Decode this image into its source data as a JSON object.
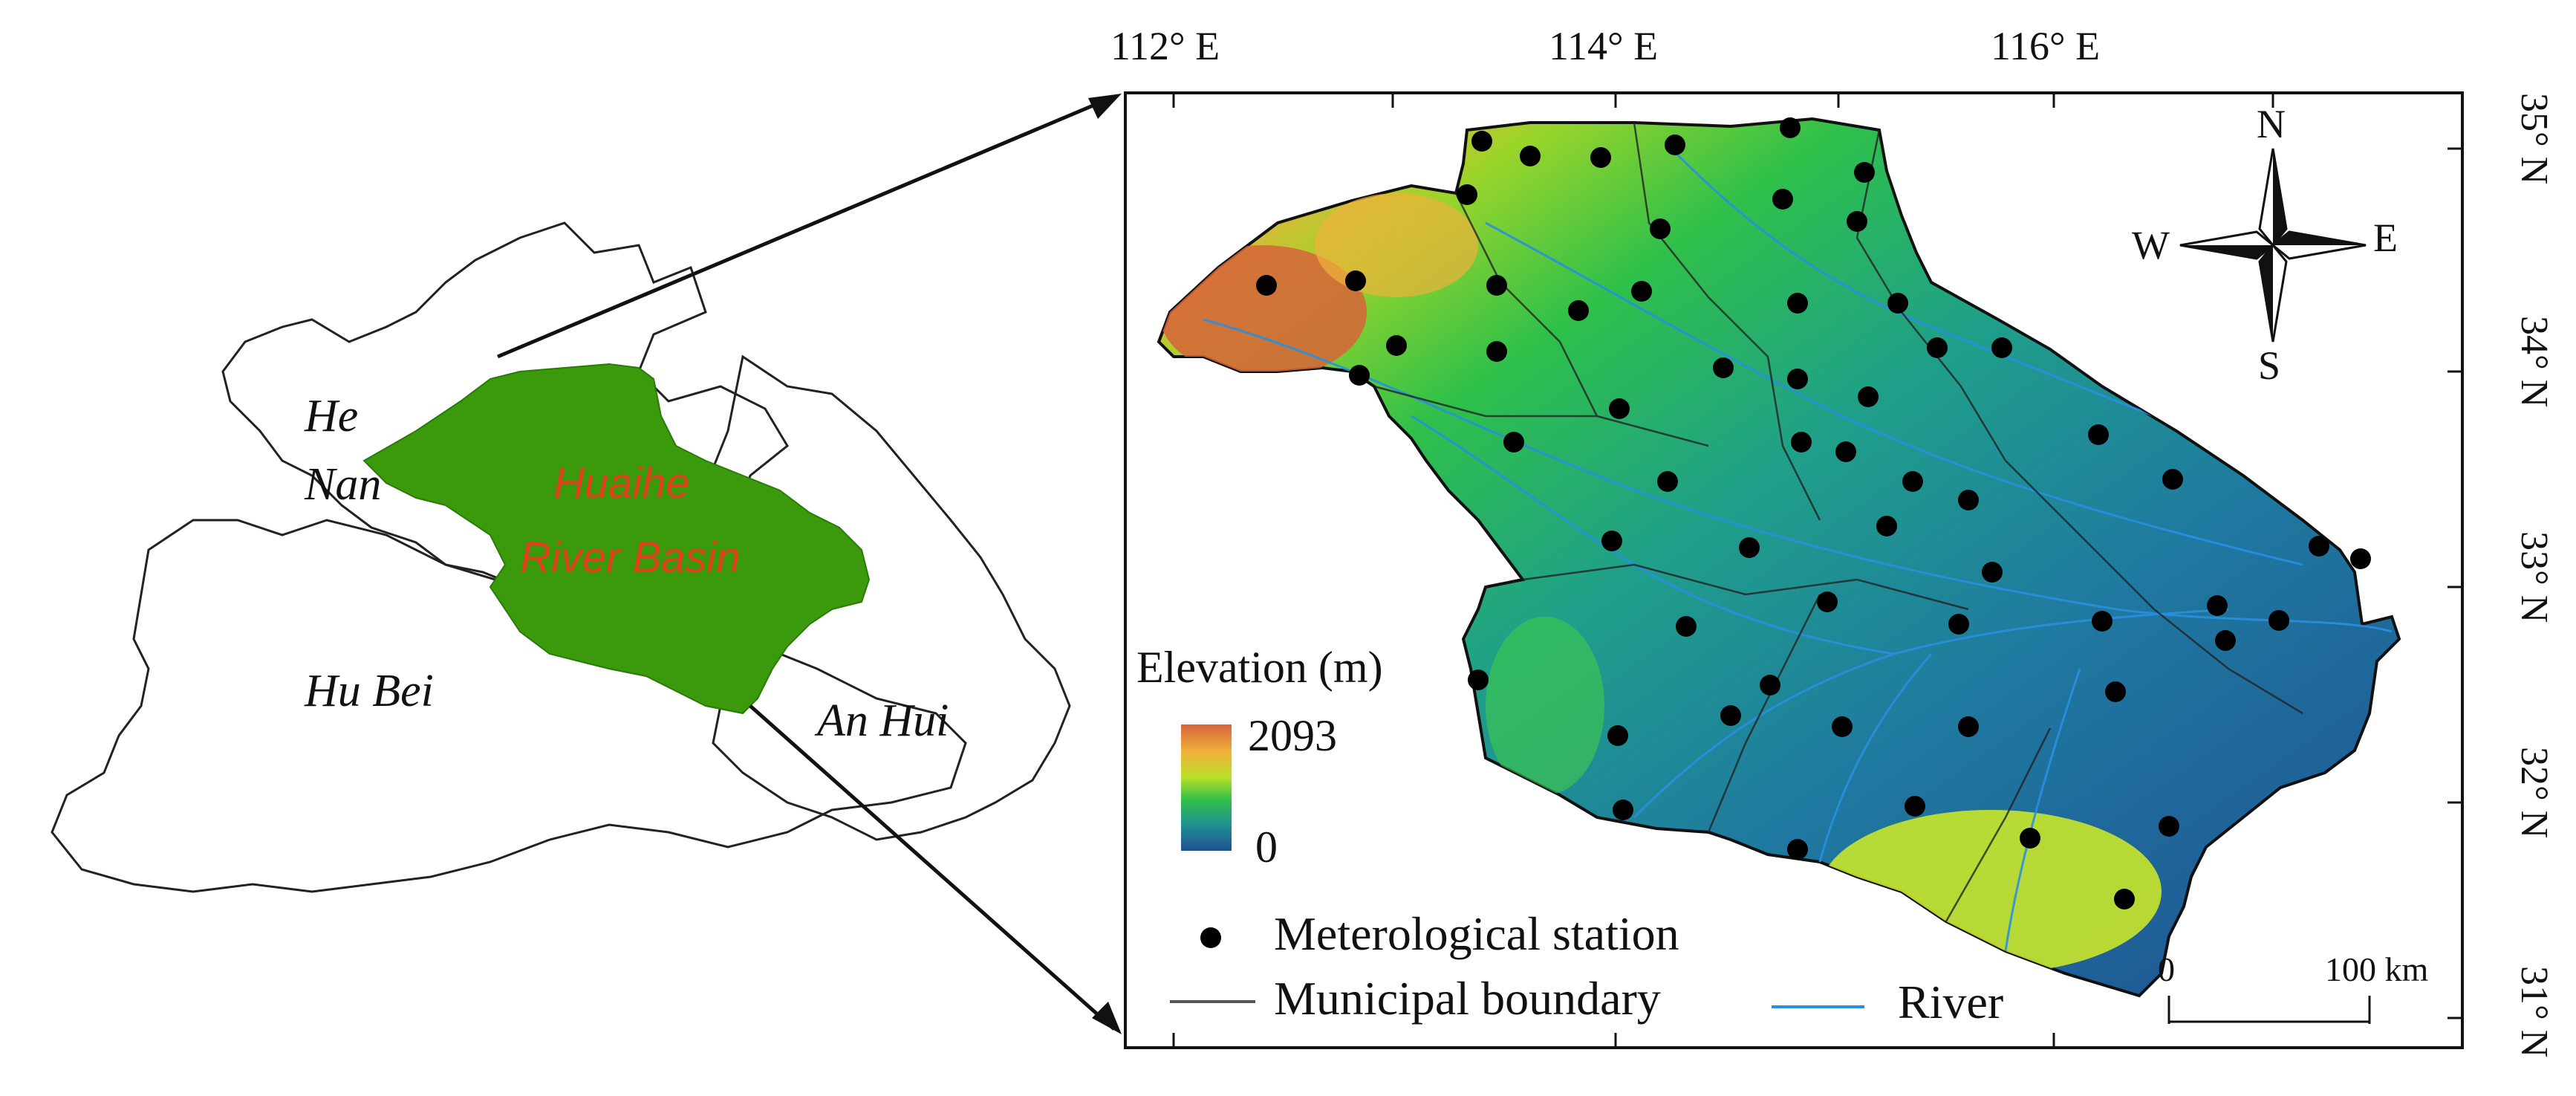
{
  "locator": {
    "province_labels": [
      {
        "id": "he-nan-1",
        "text": "He"
      },
      {
        "id": "he-nan-2",
        "text": "Nan"
      },
      {
        "id": "hu-bei",
        "text": "Hu Bei"
      },
      {
        "id": "an-hui",
        "text": "An Hui"
      }
    ],
    "basin_label_line1": "Huaihe",
    "basin_label_line2": "River Basin",
    "basin_fill_color": "#3a9a0b",
    "basin_label_color": "#e0401a"
  },
  "map": {
    "longitude_labels": [
      "112° E",
      "114° E",
      "116° E"
    ],
    "latitude_labels": [
      "35° N",
      "34° N",
      "33° N",
      "32° N",
      "31° N"
    ],
    "compass": {
      "north": "N",
      "south": "S",
      "east": "E",
      "west": "W"
    },
    "elevation_legend": {
      "title": "Elevation (m)",
      "max_label": "2093",
      "min_label": "0",
      "max_value": 2093,
      "min_value": 0,
      "ramp_colors": [
        "#d7643a",
        "#f0b23a",
        "#9ad52a",
        "#2fc04a",
        "#1f8f95",
        "#1f5aa0"
      ]
    },
    "legend_items": [
      {
        "id": "station",
        "label": "Meterological station",
        "symbol": "filled-circle",
        "color": "#000000"
      },
      {
        "id": "boundary",
        "label": "Municipal boundary",
        "symbol": "line",
        "color": "#555555"
      },
      {
        "id": "river",
        "label": "River",
        "symbol": "line",
        "color": "#2a8fe0"
      }
    ],
    "scale_bar": {
      "start_label": "0",
      "end_label": "100 km"
    }
  }
}
